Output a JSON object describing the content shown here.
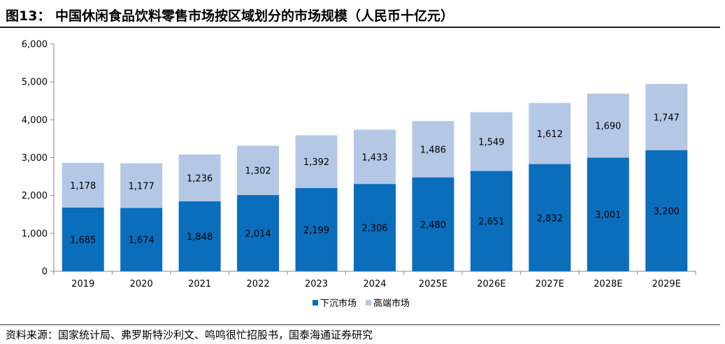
{
  "header": {
    "title": "图13：  中国休闲食品饮料零售市场按区域划分的市场规模（人民币十亿元）"
  },
  "footer": {
    "source": "资料来源：国家统计局、弗罗斯特沙利文、鸣鸣很忙招股书，国泰海通证券研究"
  },
  "colors": {
    "lower_market": "#0a6ebd",
    "high_end_market": "#b4c8e6",
    "axis": "#888888",
    "text": "#000000"
  },
  "chart_data": {
    "type": "bar",
    "stacked": true,
    "title": "",
    "xlabel": "",
    "ylabel": "",
    "ylim": [
      0,
      6000
    ],
    "yticks": [
      0,
      1000,
      2000,
      3000,
      4000,
      5000,
      6000
    ],
    "ytick_labels": [
      "0",
      "1,000",
      "2,000",
      "3,000",
      "4,000",
      "5,000",
      "6,000"
    ],
    "categories": [
      "2019",
      "2020",
      "2021",
      "2022",
      "2023",
      "2024",
      "2025E",
      "2026E",
      "2027E",
      "2028E",
      "2029E"
    ],
    "series": [
      {
        "name": "下沉市场",
        "values": [
          1685,
          1674,
          1848,
          2014,
          2199,
          2306,
          2480,
          2651,
          2832,
          3001,
          3200
        ],
        "labels": [
          "1,685",
          "1,674",
          "1,848",
          "2,014",
          "2,199",
          "2,306",
          "2,480",
          "2,651",
          "2,832",
          "3,001",
          "3,200"
        ]
      },
      {
        "name": "高端市场",
        "values": [
          1178,
          1177,
          1236,
          1302,
          1392,
          1433,
          1486,
          1549,
          1612,
          1690,
          1747
        ],
        "labels": [
          "1,178",
          "1,177",
          "1,236",
          "1,302",
          "1,392",
          "1,433",
          "1,486",
          "1,549",
          "1,612",
          "1,690",
          "1,747"
        ]
      }
    ],
    "legend": "bottom-center",
    "grid": false
  }
}
